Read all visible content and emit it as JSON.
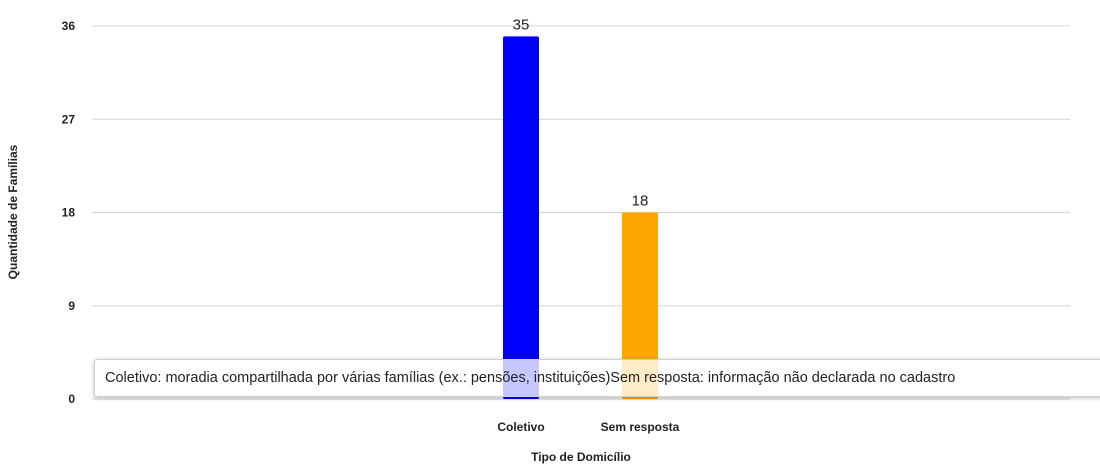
{
  "chart_data": {
    "type": "bar",
    "categories": [
      "Coletivo",
      "Sem resposta"
    ],
    "values": [
      35,
      18
    ],
    "data_labels": [
      "35",
      "18"
    ],
    "colors": [
      "#0000ff",
      "#ffa500"
    ],
    "ylim": [
      0,
      36
    ],
    "yticks": [
      "0",
      "9",
      "18",
      "27",
      "36"
    ],
    "xlabel": "Tipo de Domicílio",
    "ylabel": "Quantidade de Famílias",
    "grid": true
  },
  "tooltip": {
    "text": "Coletivo: moradia compartilhada por várias famílias (ex.: pensões, instituições)Sem resposta: informação não declarada no cadastro"
  }
}
